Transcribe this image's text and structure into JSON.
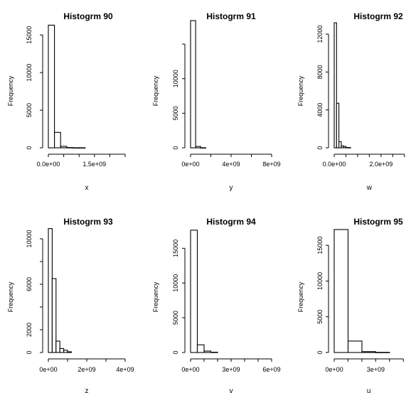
{
  "chart_data": [
    {
      "type": "bar",
      "title": "Histogrm 90",
      "xlabel": "x",
      "ylabel": "Frequency",
      "xlim": [
        0,
        2500000000
      ],
      "ylim": [
        0,
        17000
      ],
      "xticks": [
        {
          "v": 0,
          "label": "0.0e+00"
        },
        {
          "v": 1500000000,
          "label": "1.5e+09"
        }
      ],
      "xticks_minor": [
        500000000,
        1000000000,
        2000000000,
        2500000000
      ],
      "yticks": [
        {
          "v": 0,
          "label": "0"
        },
        {
          "v": 5000,
          "label": "5000"
        },
        {
          "v": 10000,
          "label": "10000"
        },
        {
          "v": 15000,
          "label": "15000"
        }
      ],
      "bins": [
        {
          "x0": 0,
          "x1": 200000000,
          "count": 16300
        },
        {
          "x0": 200000000,
          "x1": 400000000,
          "count": 2050
        },
        {
          "x0": 400000000,
          "x1": 600000000,
          "count": 200
        },
        {
          "x0": 600000000,
          "x1": 800000000,
          "count": 40
        },
        {
          "x0": 800000000,
          "x1": 1000000000,
          "count": 10
        },
        {
          "x0": 1000000000,
          "x1": 1200000000,
          "count": 5
        }
      ]
    },
    {
      "type": "bar",
      "title": "Histogrm 91",
      "xlabel": "y",
      "ylabel": "Frequency",
      "xlim": [
        0,
        8000000000
      ],
      "ylim": [
        0,
        18500
      ],
      "xticks": [
        {
          "v": 0,
          "label": "0e+00"
        },
        {
          "v": 4000000000,
          "label": "4e+09"
        },
        {
          "v": 8000000000,
          "label": "8e+09"
        }
      ],
      "xticks_minor": [
        2000000000,
        6000000000
      ],
      "yticks": [
        {
          "v": 0,
          "label": "0"
        },
        {
          "v": 5000,
          "label": "5000"
        },
        {
          "v": 10000,
          "label": "10000"
        }
      ],
      "yticks_minor": [
        15000
      ],
      "bins": [
        {
          "x0": 0,
          "x1": 500000000,
          "count": 18400
        },
        {
          "x0": 500000000,
          "x1": 1000000000,
          "count": 200
        },
        {
          "x0": 1000000000,
          "x1": 1500000000,
          "count": 10
        }
      ]
    },
    {
      "type": "bar",
      "title": "Histogrm 92",
      "xlabel": "w",
      "ylabel": "Frequency",
      "xlim": [
        0,
        3250000000
      ],
      "ylim": [
        0,
        13500
      ],
      "xticks": [
        {
          "v": 0,
          "label": "0.0e+00"
        },
        {
          "v": 2000000000,
          "label": "2.0e+09"
        }
      ],
      "xticks_minor": [
        500000000,
        1000000000,
        1500000000,
        2500000000,
        3000000000
      ],
      "yticks": [
        {
          "v": 0,
          "label": "0"
        },
        {
          "v": 4000,
          "label": "4000"
        },
        {
          "v": 8000,
          "label": "8000"
        },
        {
          "v": 12000,
          "label": "12000"
        }
      ],
      "bins": [
        {
          "x0": 0,
          "x1": 100000000,
          "count": 13200
        },
        {
          "x0": 100000000,
          "x1": 200000000,
          "count": 4700
        },
        {
          "x0": 200000000,
          "x1": 300000000,
          "count": 650
        },
        {
          "x0": 300000000,
          "x1": 400000000,
          "count": 200
        },
        {
          "x0": 400000000,
          "x1": 500000000,
          "count": 150
        },
        {
          "x0": 500000000,
          "x1": 600000000,
          "count": 40
        },
        {
          "x0": 600000000,
          "x1": 700000000,
          "count": 20
        }
      ]
    },
    {
      "type": "bar",
      "title": "Histogrm 93",
      "xlabel": "z",
      "ylabel": "Frequency",
      "xlim": [
        0,
        4000000000
      ],
      "ylim": [
        0,
        11000
      ],
      "xticks": [
        {
          "v": 0,
          "label": "0e+00"
        },
        {
          "v": 2000000000,
          "label": "2e+09"
        },
        {
          "v": 4000000000,
          "label": "4e+09"
        }
      ],
      "xticks_minor": [
        1000000000,
        3000000000
      ],
      "yticks": [
        {
          "v": 0,
          "label": "0"
        },
        {
          "v": 2000,
          "label": "2000"
        },
        {
          "v": 6000,
          "label": "6000"
        },
        {
          "v": 10000,
          "label": "10000"
        }
      ],
      "yticks_minor": [
        4000,
        8000
      ],
      "bins": [
        {
          "x0": 0,
          "x1": 200000000,
          "count": 10900
        },
        {
          "x0": 200000000,
          "x1": 400000000,
          "count": 6500
        },
        {
          "x0": 400000000,
          "x1": 600000000,
          "count": 1000
        },
        {
          "x0": 600000000,
          "x1": 800000000,
          "count": 350
        },
        {
          "x0": 800000000,
          "x1": 1000000000,
          "count": 200
        },
        {
          "x0": 1000000000,
          "x1": 1200000000,
          "count": 60
        }
      ]
    },
    {
      "type": "bar",
      "title": "Histogrm 94",
      "xlabel": "v",
      "ylabel": "Frequency",
      "xlim": [
        0,
        6000000000
      ],
      "ylim": [
        0,
        18000
      ],
      "xticks": [
        {
          "v": 0,
          "label": "0e+00"
        },
        {
          "v": 3000000000,
          "label": "3e+09"
        },
        {
          "v": 6000000000,
          "label": "6e+09"
        }
      ],
      "xticks_minor": [
        1000000000,
        2000000000,
        4000000000,
        5000000000
      ],
      "yticks": [
        {
          "v": 0,
          "label": "0"
        },
        {
          "v": 5000,
          "label": "5000"
        },
        {
          "v": 10000,
          "label": "10000"
        },
        {
          "v": 15000,
          "label": "15000"
        }
      ],
      "bins": [
        {
          "x0": 0,
          "x1": 500000000,
          "count": 17600
        },
        {
          "x0": 500000000,
          "x1": 1000000000,
          "count": 1100
        },
        {
          "x0": 1000000000,
          "x1": 1500000000,
          "count": 200
        },
        {
          "x0": 1500000000,
          "x1": 2000000000,
          "count": 40
        }
      ]
    },
    {
      "type": "bar",
      "title": "Histogrm 95",
      "xlabel": "u",
      "ylabel": "Frequency",
      "xlim": [
        0,
        5500000000
      ],
      "ylim": [
        0,
        17500
      ],
      "xticks": [
        {
          "v": 0,
          "label": "0e+00"
        },
        {
          "v": 3000000000,
          "label": "3e+09"
        }
      ],
      "xticks_minor": [
        1000000000,
        2000000000,
        4000000000,
        5000000000
      ],
      "yticks": [
        {
          "v": 0,
          "label": "0"
        },
        {
          "v": 5000,
          "label": "5000"
        },
        {
          "v": 10000,
          "label": "10000"
        },
        {
          "v": 15000,
          "label": "15000"
        }
      ],
      "bins": [
        {
          "x0": 0,
          "x1": 1000000000,
          "count": 17200
        },
        {
          "x0": 1000000000,
          "x1": 2000000000,
          "count": 1600
        },
        {
          "x0": 2000000000,
          "x1": 3000000000,
          "count": 120
        },
        {
          "x0": 3000000000,
          "x1": 4000000000,
          "count": 20
        }
      ]
    }
  ]
}
